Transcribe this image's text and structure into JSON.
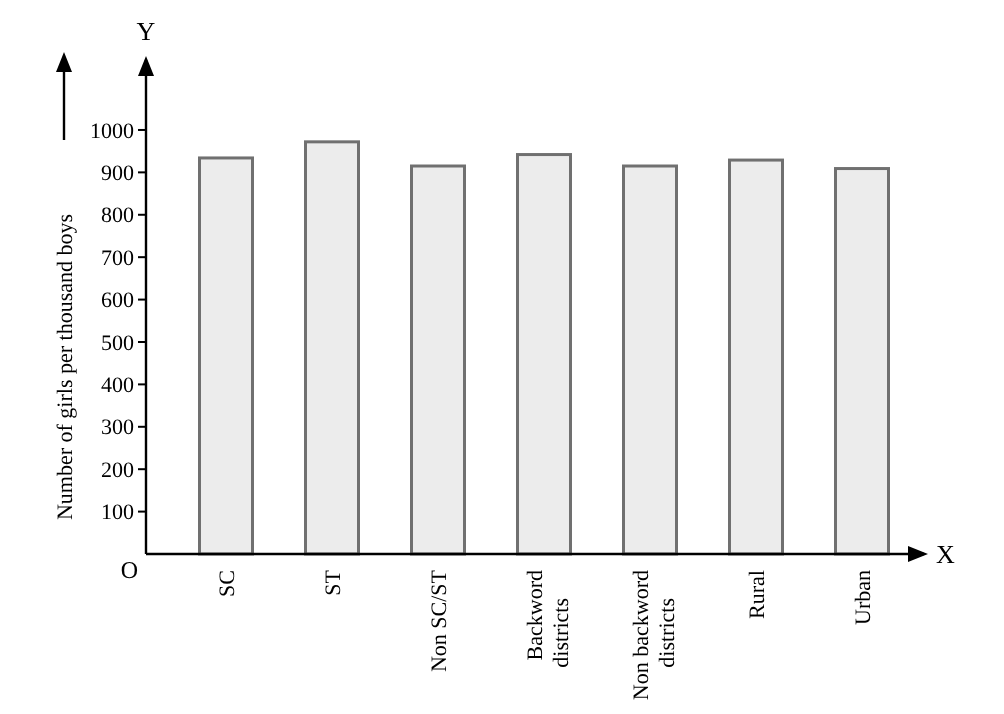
{
  "chart_data": {
    "type": "bar",
    "ylabel": "Number of girls per thousand boys",
    "categories": [
      "SC",
      "ST",
      "Non SC/ST",
      "Backword districts",
      "Non backword districts",
      "Rural",
      "Urban"
    ],
    "values": [
      934,
      972,
      915,
      942,
      915,
      929,
      909
    ],
    "color": "#ececec",
    "ylim": [
      0,
      1165
    ],
    "yticks": [
      100,
      200,
      300,
      400,
      500,
      600,
      700,
      800,
      900,
      1000
    ],
    "annotations": [
      "Y",
      "X",
      "O"
    ]
  }
}
